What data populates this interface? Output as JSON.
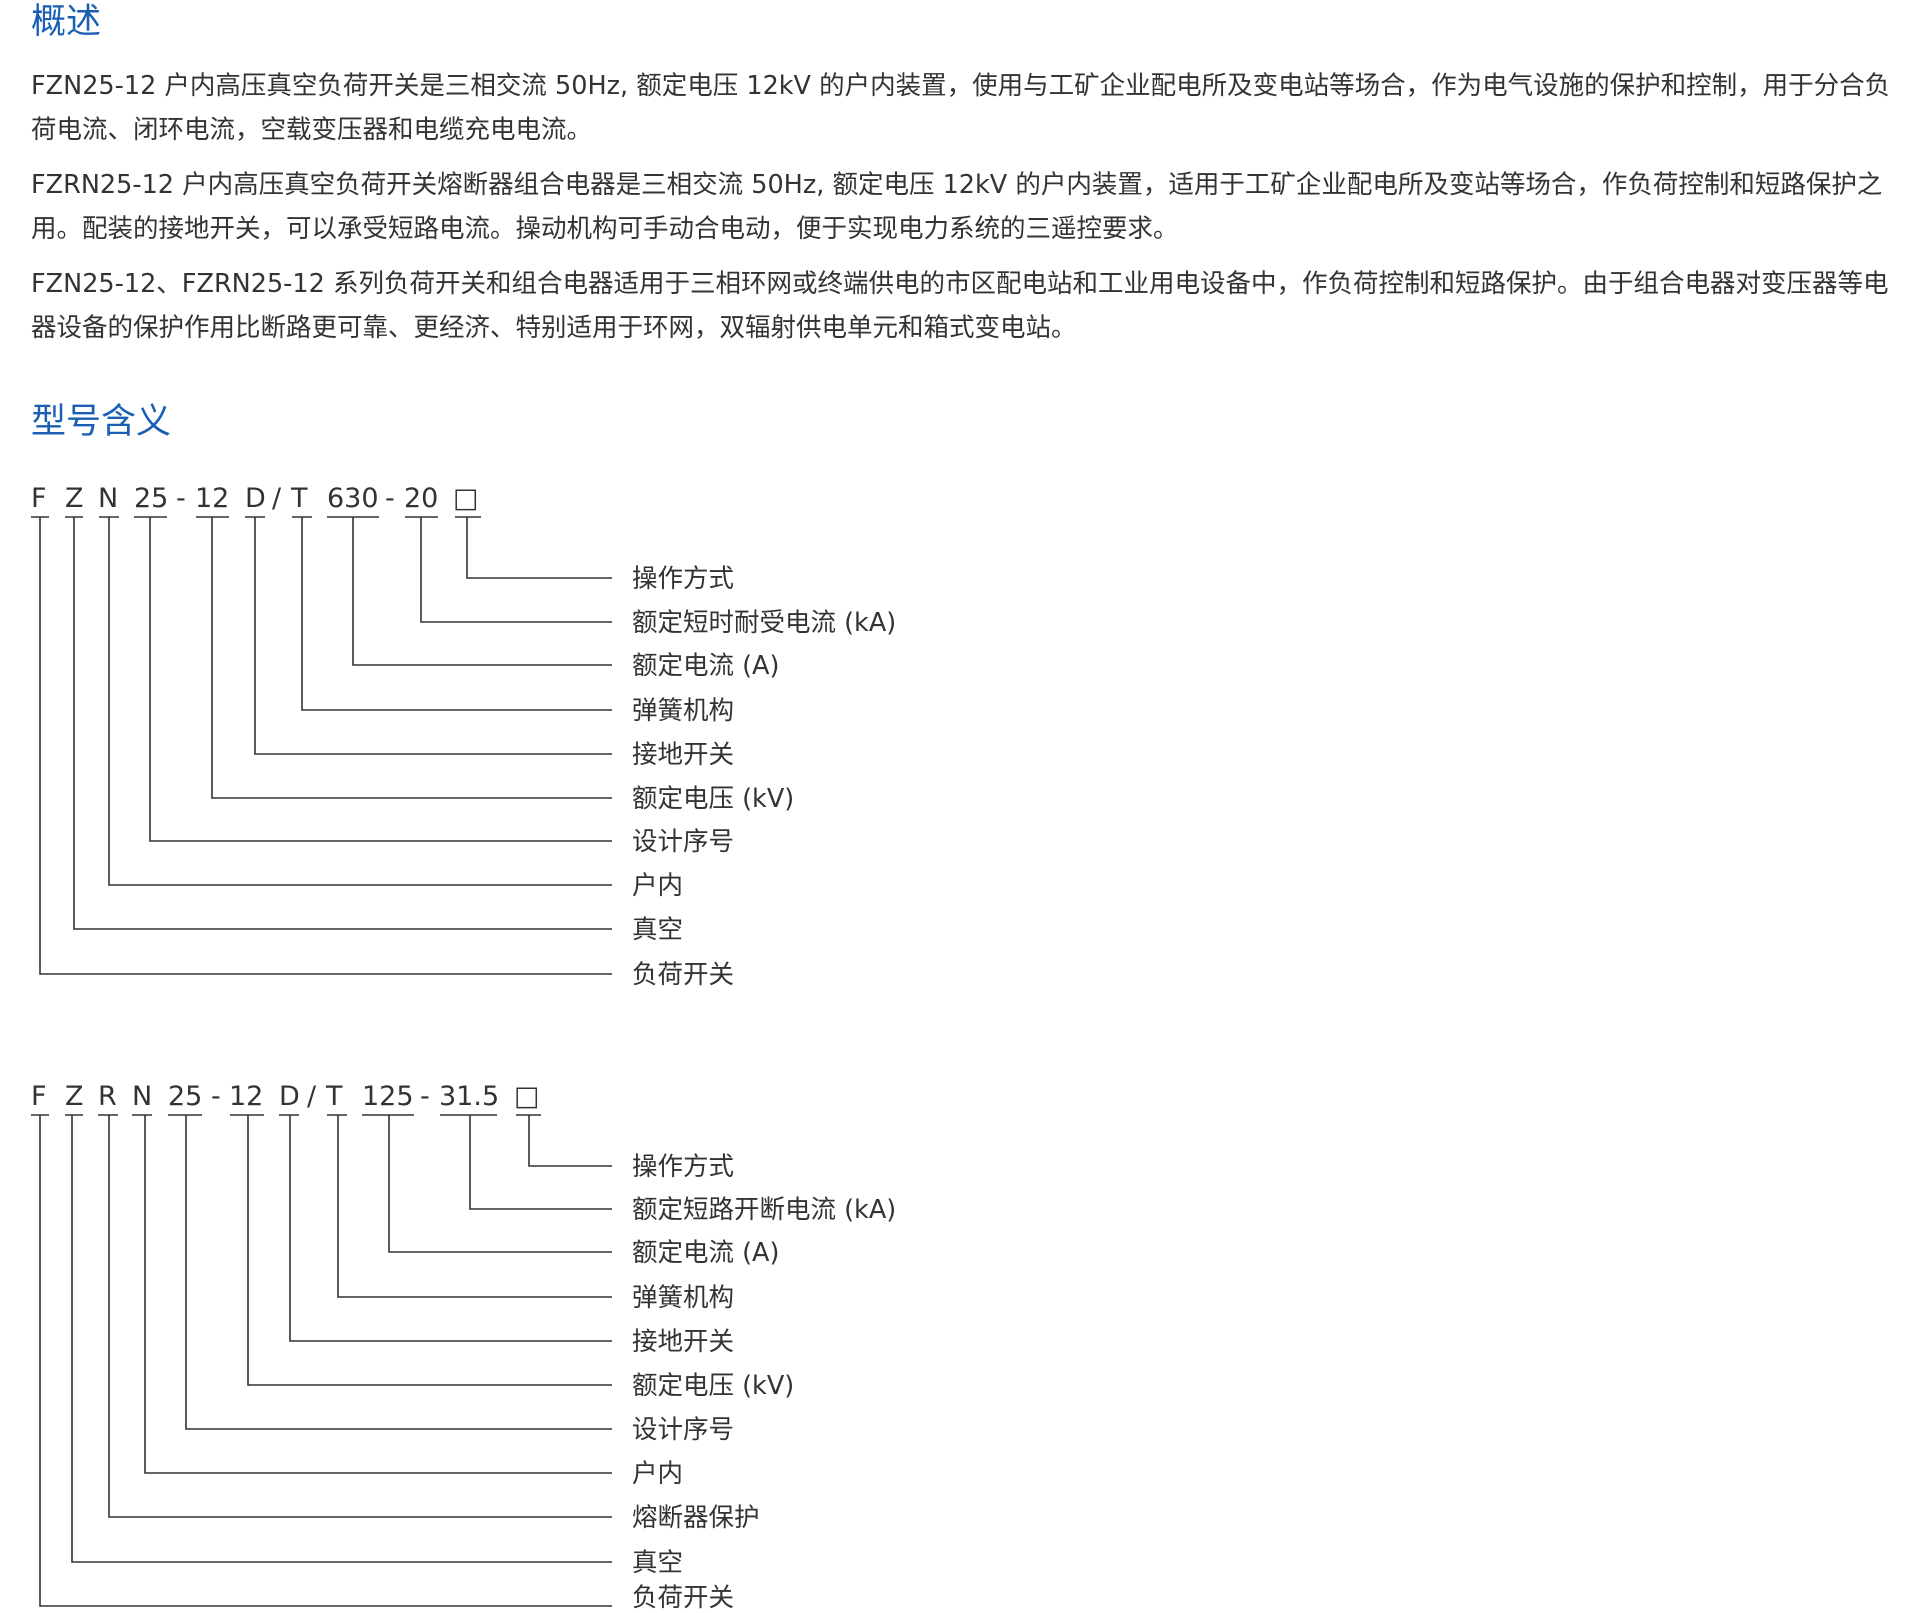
{
  "overview": {
    "title": "概述",
    "paragraphs": [
      "FZN25-12 户内高压真空负荷开关是三相交流 50Hz, 额定电压 12kV 的户内装置，使用与工矿企业配电所及变电站等场合，作为电气设施的保护和控制，用于分合负荷电流、闭环电流，空载变压器和电缆充电电流。",
      "FZRN25-12 户内高压真空负荷开关熔断器组合电器是三相交流 50Hz, 额定电压 12kV 的户内装置，适用于工矿企业配电所及变站等场合，作负荷控制和短路保护之用。配装的接地开关，可以承受短路电流。操动机构可手动合电动，便于实现电力系统的三遥控要求。",
      "FZN25-12、FZRN25-12 系列负荷开关和组合电器适用于三相环网或终端供电的市区配电站和工业用电设备中，作负荷控制和短路保护。由于组合电器对变压器等电器设备的保护作用比断路更可靠、更经济、特别适用于环网，双辐射供电单元和箱式变电站。"
    ]
  },
  "model_meaning": {
    "title": "型号含义",
    "diagrams": [
      {
        "code_parts": [
          "F",
          "Z",
          "N",
          "25",
          "-",
          "12",
          "D",
          "/",
          "T",
          "630",
          "-",
          "20",
          "□"
        ],
        "labels": [
          "操作方式",
          "额定短时耐受电流 (kA)",
          "额定电流 (A)",
          "弹簧机构",
          "接地开关",
          "额定电压 (kV)",
          "设计序号",
          "户内",
          "真空",
          "负荷开关"
        ]
      },
      {
        "code_parts": [
          "F",
          "Z",
          "R",
          "N",
          "25",
          "-",
          "12",
          "D",
          "/",
          "T",
          "125",
          "-",
          "31.5",
          "□"
        ],
        "labels": [
          "操作方式",
          "额定短路开断电流 (kA)",
          "额定电流 (A)",
          "弹簧机构",
          "接地开关",
          "额定电压 (kV)",
          "设计序号",
          "户内",
          "熔断器保护",
          "真空",
          "负荷开关"
        ]
      }
    ]
  }
}
